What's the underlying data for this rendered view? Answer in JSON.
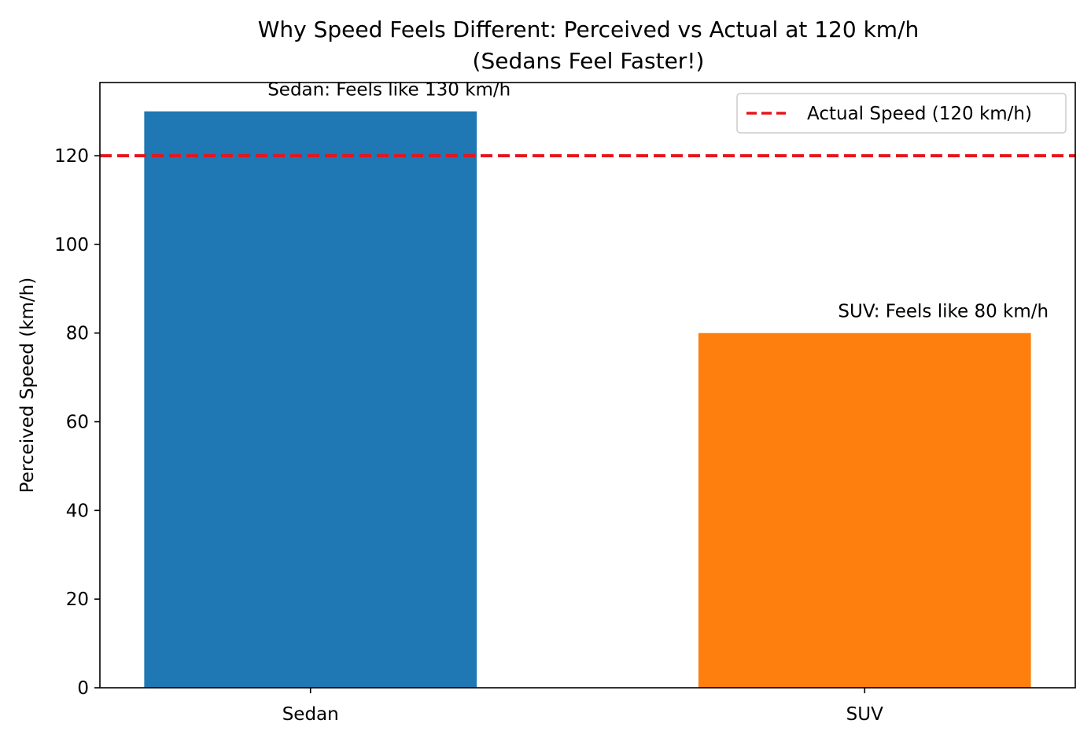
{
  "chart_data": {
    "type": "bar",
    "title_line1": "Why Speed Feels Different: Perceived vs Actual at 120 km/h",
    "title_line2": "(Sedans Feel Faster!)",
    "xlabel": "",
    "ylabel": "Perceived Speed (km/h)",
    "categories": [
      "Sedan",
      "SUV"
    ],
    "values": [
      130,
      80
    ],
    "bar_colors": [
      "#1f77b4",
      "#ff7f0e"
    ],
    "bar_labels": [
      "Sedan: Feels like 130 km/h",
      "SUV: Feels like 80 km/h"
    ],
    "ylim": [
      0,
      136.5
    ],
    "yticks": [
      0,
      20,
      40,
      60,
      80,
      100,
      120
    ],
    "reference_line": {
      "value": 120,
      "label": "Actual Speed (120 km/h)",
      "color": "#e8151b",
      "style": "dashed"
    },
    "legend_position": "top-right",
    "grid": false
  }
}
